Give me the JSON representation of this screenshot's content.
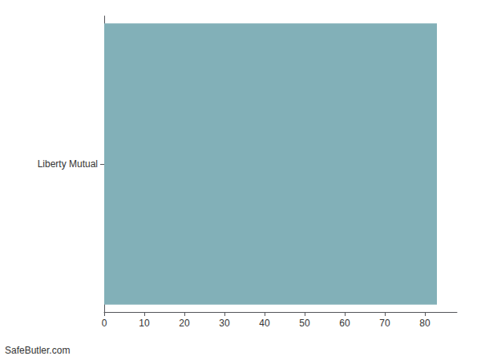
{
  "chart_data": {
    "type": "bar",
    "orientation": "horizontal",
    "categories": [
      "Liberty Mutual"
    ],
    "values": [
      83
    ],
    "color": "#82b0b8",
    "xlim": [
      0,
      88
    ],
    "xticks": [
      0,
      10,
      20,
      30,
      40,
      50,
      60,
      70,
      80
    ],
    "grid": false,
    "annotation": "SafeButler.com"
  }
}
